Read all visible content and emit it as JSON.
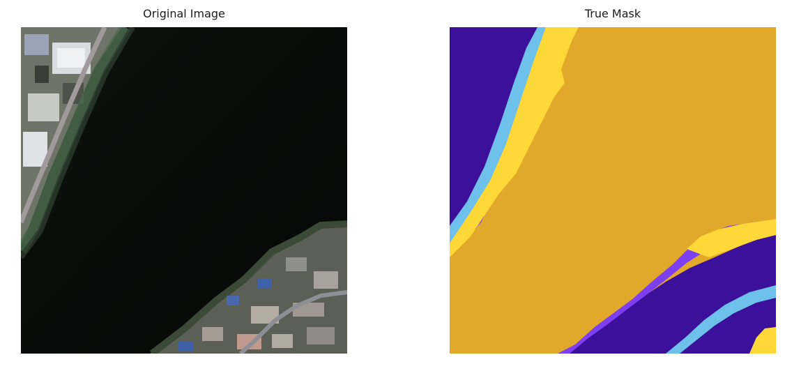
{
  "panels": [
    {
      "title": "Original Image"
    },
    {
      "title": "True Mask"
    }
  ],
  "mask_colors": {
    "background_purple": "#3b109a",
    "violet_edge": "#7e3ff0",
    "light_blue": "#6ec1ea",
    "yellow": "#fdd838",
    "orange": "#e2a829"
  }
}
